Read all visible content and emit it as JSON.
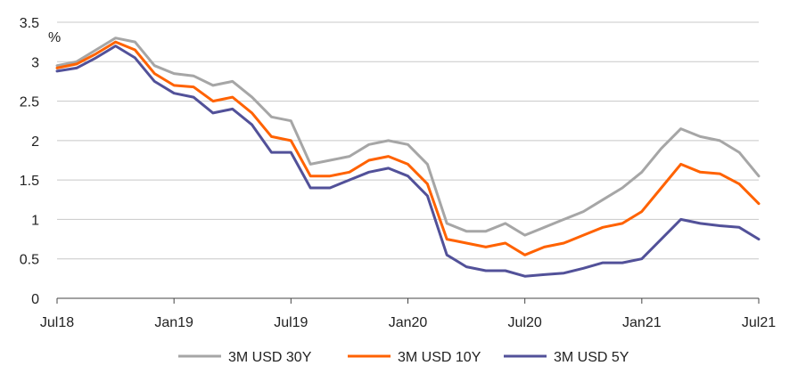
{
  "chart_data": {
    "type": "line",
    "ylabel": "%",
    "ylim": [
      0,
      3.5
    ],
    "yticks": [
      "0",
      "0.5",
      "1",
      "1.5",
      "2",
      "2.5",
      "3",
      "3.5"
    ],
    "xlim": [
      "2018-07",
      "2021-07"
    ],
    "xticks": [
      "Jul18",
      "Jan19",
      "Jul19",
      "Jan20",
      "Jul20",
      "Jan21",
      "Jul21"
    ],
    "grid": "horizontal",
    "legend": "bottom",
    "series": [
      {
        "name": "3M USD 30Y",
        "color": "#a6a6a6",
        "values": [
          [
            "2018-07",
            2.95
          ],
          [
            "2018-08",
            3.0
          ],
          [
            "2018-09",
            3.15
          ],
          [
            "2018-10",
            3.3
          ],
          [
            "2018-11",
            3.25
          ],
          [
            "2018-12",
            2.95
          ],
          [
            "2019-01",
            2.85
          ],
          [
            "2019-02",
            2.82
          ],
          [
            "2019-03",
            2.7
          ],
          [
            "2019-04",
            2.75
          ],
          [
            "2019-05",
            2.55
          ],
          [
            "2019-06",
            2.3
          ],
          [
            "2019-07",
            2.25
          ],
          [
            "2019-08",
            1.7
          ],
          [
            "2019-09",
            1.75
          ],
          [
            "2019-10",
            1.8
          ],
          [
            "2019-11",
            1.95
          ],
          [
            "2019-12",
            2.0
          ],
          [
            "2020-01",
            1.95
          ],
          [
            "2020-02",
            1.7
          ],
          [
            "2020-03",
            0.95
          ],
          [
            "2020-04",
            0.85
          ],
          [
            "2020-05",
            0.85
          ],
          [
            "2020-06",
            0.95
          ],
          [
            "2020-07",
            0.8
          ],
          [
            "2020-08",
            0.9
          ],
          [
            "2020-09",
            1.0
          ],
          [
            "2020-10",
            1.1
          ],
          [
            "2020-11",
            1.25
          ],
          [
            "2020-12",
            1.4
          ],
          [
            "2021-01",
            1.6
          ],
          [
            "2021-02",
            1.9
          ],
          [
            "2021-03",
            2.15
          ],
          [
            "2021-04",
            2.05
          ],
          [
            "2021-05",
            2.0
          ],
          [
            "2021-06",
            1.85
          ],
          [
            "2021-07",
            1.55
          ]
        ]
      },
      {
        "name": "3M USD 10Y",
        "color": "#ff6200",
        "values": [
          [
            "2018-07",
            2.92
          ],
          [
            "2018-08",
            2.97
          ],
          [
            "2018-09",
            3.1
          ],
          [
            "2018-10",
            3.25
          ],
          [
            "2018-11",
            3.15
          ],
          [
            "2018-12",
            2.85
          ],
          [
            "2019-01",
            2.7
          ],
          [
            "2019-02",
            2.68
          ],
          [
            "2019-03",
            2.5
          ],
          [
            "2019-04",
            2.55
          ],
          [
            "2019-05",
            2.35
          ],
          [
            "2019-06",
            2.05
          ],
          [
            "2019-07",
            2.0
          ],
          [
            "2019-08",
            1.55
          ],
          [
            "2019-09",
            1.55
          ],
          [
            "2019-10",
            1.6
          ],
          [
            "2019-11",
            1.75
          ],
          [
            "2019-12",
            1.8
          ],
          [
            "2020-01",
            1.7
          ],
          [
            "2020-02",
            1.45
          ],
          [
            "2020-03",
            0.75
          ],
          [
            "2020-04",
            0.7
          ],
          [
            "2020-05",
            0.65
          ],
          [
            "2020-06",
            0.7
          ],
          [
            "2020-07",
            0.55
          ],
          [
            "2020-08",
            0.65
          ],
          [
            "2020-09",
            0.7
          ],
          [
            "2020-10",
            0.8
          ],
          [
            "2020-11",
            0.9
          ],
          [
            "2020-12",
            0.95
          ],
          [
            "2021-01",
            1.1
          ],
          [
            "2021-02",
            1.4
          ],
          [
            "2021-03",
            1.7
          ],
          [
            "2021-04",
            1.6
          ],
          [
            "2021-05",
            1.58
          ],
          [
            "2021-06",
            1.45
          ],
          [
            "2021-07",
            1.2
          ]
        ]
      },
      {
        "name": "3M USD 5Y",
        "color": "#525199",
        "values": [
          [
            "2018-07",
            2.88
          ],
          [
            "2018-08",
            2.92
          ],
          [
            "2018-09",
            3.05
          ],
          [
            "2018-10",
            3.2
          ],
          [
            "2018-11",
            3.05
          ],
          [
            "2018-12",
            2.75
          ],
          [
            "2019-01",
            2.6
          ],
          [
            "2019-02",
            2.55
          ],
          [
            "2019-03",
            2.35
          ],
          [
            "2019-04",
            2.4
          ],
          [
            "2019-05",
            2.2
          ],
          [
            "2019-06",
            1.85
          ],
          [
            "2019-07",
            1.85
          ],
          [
            "2019-08",
            1.4
          ],
          [
            "2019-09",
            1.4
          ],
          [
            "2019-10",
            1.5
          ],
          [
            "2019-11",
            1.6
          ],
          [
            "2019-12",
            1.65
          ],
          [
            "2020-01",
            1.55
          ],
          [
            "2020-02",
            1.3
          ],
          [
            "2020-03",
            0.55
          ],
          [
            "2020-04",
            0.4
          ],
          [
            "2020-05",
            0.35
          ],
          [
            "2020-06",
            0.35
          ],
          [
            "2020-07",
            0.28
          ],
          [
            "2020-08",
            0.3
          ],
          [
            "2020-09",
            0.32
          ],
          [
            "2020-10",
            0.38
          ],
          [
            "2020-11",
            0.45
          ],
          [
            "2020-12",
            0.45
          ],
          [
            "2021-01",
            0.5
          ],
          [
            "2021-02",
            0.75
          ],
          [
            "2021-03",
            1.0
          ],
          [
            "2021-04",
            0.95
          ],
          [
            "2021-05",
            0.92
          ],
          [
            "2021-06",
            0.9
          ],
          [
            "2021-07",
            0.75
          ]
        ]
      }
    ]
  }
}
